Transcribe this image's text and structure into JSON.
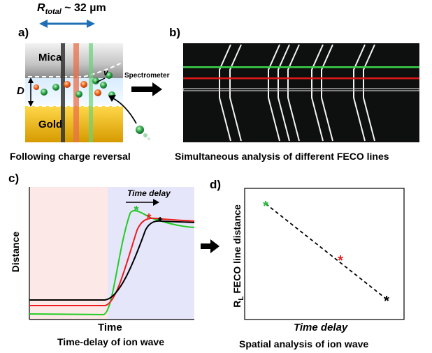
{
  "panel_a": {
    "letter": "a)",
    "r_total_symbol": "R",
    "r_total_subscript": "total",
    "r_total_value": " ~ 32 µm",
    "mica_label": "Mica",
    "gold_label": "Gold",
    "d_label": "D",
    "v_label": "v",
    "spectrometer_label": "Spectrometer",
    "caption": "Following charge reversal"
  },
  "panel_b": {
    "letter": "b)",
    "caption": "Simultaneous analysis of different FECO lines",
    "line_colors": {
      "top": "#3cd24a",
      "middle": "#e01818",
      "bottom": "#c8c8c8"
    }
  },
  "panel_c": {
    "letter": "c)",
    "time_delay_label": "Time delay",
    "ylabel": "Distance",
    "xlabel": "Time",
    "caption": "Time-delay of ion wave"
  },
  "panel_d": {
    "letter": "d)",
    "ylabel_main": "R",
    "ylabel_sub": "L",
    "ylabel_rest": " FECO line distance",
    "xlabel": "Time delay",
    "caption": "Spatial analysis of ion wave"
  },
  "colors": {
    "green": "#3cd24a",
    "red": "#ee1c1c",
    "black": "#000000",
    "blue_arrow": "#1f6fb6"
  }
}
